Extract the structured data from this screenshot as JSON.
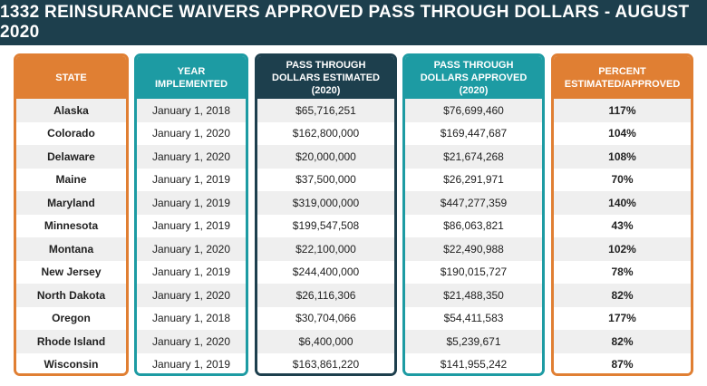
{
  "title": "1332 Reinsurance Waivers Approved Pass Through Dollars - August 2020",
  "colors": {
    "navy": "#1d3f4d",
    "teal": "#1d9ba3",
    "orange": "#e07f33"
  },
  "columns": {
    "state": "STATE",
    "year": "YEAR IMPLEMENTED",
    "estimated": "PASS THROUGH DOLLARS ESTIMATED (2020)",
    "approved": "PASS THROUGH DOLLARS APPROVED (2020)",
    "percent": "PERCENT ESTIMATED/APPROVED"
  },
  "rows": [
    {
      "state": "Alaska",
      "year": "January 1, 2018",
      "estimated": "$65,716,251",
      "approved": "$76,699,460",
      "percent": "117%"
    },
    {
      "state": "Colorado",
      "year": "January 1, 2020",
      "estimated": "$162,800,000",
      "approved": "$169,447,687",
      "percent": "104%"
    },
    {
      "state": "Delaware",
      "year": "January 1, 2020",
      "estimated": "$20,000,000",
      "approved": "$21,674,268",
      "percent": "108%"
    },
    {
      "state": "Maine",
      "year": "January 1, 2019",
      "estimated": "$37,500,000",
      "approved": "$26,291,971",
      "percent": "70%"
    },
    {
      "state": "Maryland",
      "year": "January 1, 2019",
      "estimated": "$319,000,000",
      "approved": "$447,277,359",
      "percent": "140%"
    },
    {
      "state": "Minnesota",
      "year": "January 1, 2019",
      "estimated": "$199,547,508",
      "approved": "$86,063,821",
      "percent": "43%"
    },
    {
      "state": "Montana",
      "year": "January 1, 2020",
      "estimated": "$22,100,000",
      "approved": "$22,490,988",
      "percent": "102%"
    },
    {
      "state": "New Jersey",
      "year": "January 1, 2019",
      "estimated": "$244,400,000",
      "approved": "$190,015,727",
      "percent": "78%"
    },
    {
      "state": "North Dakota",
      "year": "January 1, 2020",
      "estimated": "$26,116,306",
      "approved": "$21,488,350",
      "percent": "82%"
    },
    {
      "state": "Oregon",
      "year": "January 1, 2018",
      "estimated": "$30,704,066",
      "approved": "$54,411,583",
      "percent": "177%"
    },
    {
      "state": "Rhode Island",
      "year": "January 1, 2020",
      "estimated": "$6,400,000",
      "approved": "$5,239,671",
      "percent": "82%"
    },
    {
      "state": "Wisconsin",
      "year": "January 1, 2019",
      "estimated": "$163,861,220",
      "approved": "$141,955,242",
      "percent": "87%"
    }
  ]
}
